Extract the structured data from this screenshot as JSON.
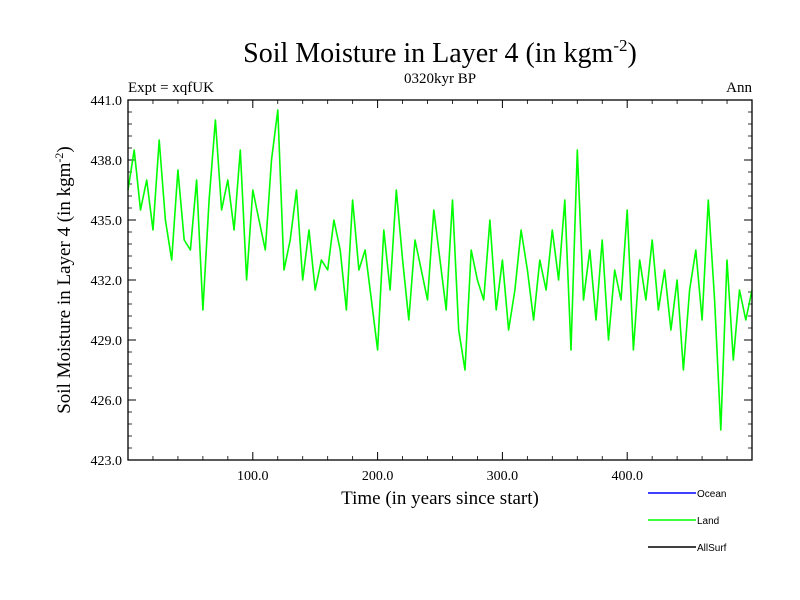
{
  "chart_data": {
    "type": "line",
    "title": "Soil Moisture in Layer 4 (in kgm",
    "title_sup": "-2",
    "title_close": ")",
    "subtitle": "0320kyr BP",
    "left_label": "Expt = xqfUK",
    "right_label": "Ann",
    "xlabel": "Time (in years since start)",
    "ylabel": "Soil Moisture in Layer 4 (in kgm",
    "ylabel_sup": "-2",
    "ylabel_close": ")",
    "xlim": [
      0,
      500
    ],
    "ylim": [
      423.0,
      441.0
    ],
    "x_ticks": [
      100,
      200,
      300,
      400
    ],
    "x_tick_labels": [
      "100.0",
      "200.0",
      "300.0",
      "400.0"
    ],
    "y_ticks": [
      423,
      426,
      429,
      432,
      435,
      438,
      441
    ],
    "y_tick_labels": [
      "423.0",
      "426.0",
      "429.0",
      "432.0",
      "435.0",
      "438.0",
      "441.0"
    ],
    "legend": [
      {
        "name": "Ocean",
        "color": "#0000ff"
      },
      {
        "name": "Land",
        "color": "#00ff00"
      },
      {
        "name": "AllSurf",
        "color": "#000000"
      }
    ],
    "series": [
      {
        "name": "Land",
        "color": "#00ff00",
        "x": [
          0,
          5,
          10,
          15,
          20,
          25,
          30,
          35,
          40,
          45,
          50,
          55,
          60,
          65,
          70,
          75,
          80,
          85,
          90,
          95,
          100,
          105,
          110,
          115,
          120,
          125,
          130,
          135,
          140,
          145,
          150,
          155,
          160,
          165,
          170,
          175,
          180,
          185,
          190,
          195,
          200,
          205,
          210,
          215,
          220,
          225,
          230,
          235,
          240,
          245,
          250,
          255,
          260,
          265,
          270,
          275,
          280,
          285,
          290,
          295,
          300,
          305,
          310,
          315,
          320,
          325,
          330,
          335,
          340,
          345,
          350,
          355,
          360,
          365,
          370,
          375,
          380,
          385,
          390,
          395,
          400,
          405,
          410,
          415,
          420,
          425,
          430,
          435,
          440,
          445,
          450,
          455,
          460,
          465,
          470,
          475,
          480,
          485,
          490,
          495,
          500
        ],
        "values": [
          436.5,
          438.5,
          435.5,
          437.0,
          434.5,
          439.0,
          435.0,
          433.0,
          437.5,
          434.0,
          433.5,
          437.0,
          430.5,
          436.0,
          440.0,
          435.5,
          437.0,
          434.5,
          438.5,
          432.0,
          436.5,
          435.0,
          433.5,
          438.0,
          440.5,
          432.5,
          434.0,
          436.5,
          432.0,
          434.5,
          431.5,
          433.0,
          432.5,
          435.0,
          433.5,
          430.5,
          436.0,
          432.5,
          433.5,
          431.0,
          428.5,
          434.5,
          431.5,
          436.5,
          433.0,
          430.0,
          434.0,
          432.5,
          431.0,
          435.5,
          433.0,
          430.5,
          436.0,
          429.5,
          427.5,
          433.5,
          432.0,
          431.0,
          435.0,
          430.5,
          433.0,
          429.5,
          431.5,
          434.5,
          432.5,
          430.0,
          433.0,
          431.5,
          434.5,
          432.0,
          436.0,
          428.5,
          438.5,
          431.0,
          433.5,
          430.0,
          434.0,
          429.0,
          432.5,
          431.0,
          435.5,
          428.5,
          433.0,
          431.0,
          434.0,
          430.5,
          432.5,
          429.5,
          432.0,
          427.5,
          431.5,
          433.5,
          430.0,
          436.0,
          431.0,
          424.5,
          433.0,
          428.0,
          431.5,
          430.0,
          431.5
        ]
      }
    ]
  }
}
